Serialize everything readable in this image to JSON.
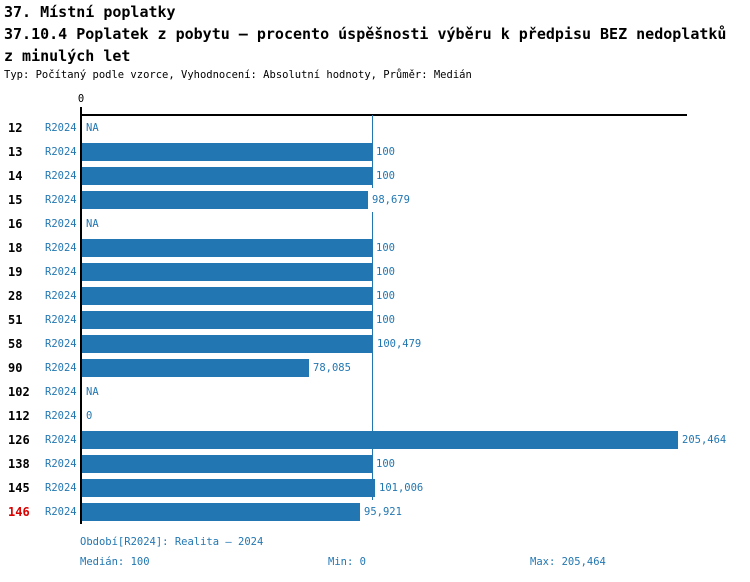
{
  "header": {
    "section_title": "37. Místní poplatky",
    "title_line1": "37.10.4 Poplatek z pobytu – procento úspěšnosti výběru k předpisu BEZ nedoplatků",
    "title_line2": "z minulých let",
    "meta": "Typ: Počítaný podle vzorce, Vyhodnocení: Absolutní hodnoty, Průměr: Medián"
  },
  "chart_data": {
    "type": "bar",
    "orientation": "horizontal",
    "title": "37.10.4 Poplatek z pobytu – procento úspěšnosti výběru k předpisu BEZ nedoplatků z minulých let",
    "axis_zero_label": "0",
    "xlim": [
      0,
      205.464
    ],
    "median_value": 100,
    "grid": false,
    "colors": {
      "bar": "#2277b2",
      "text_blue": "#2277b2",
      "axis_black": "#000000",
      "highlight_red": "#d90000"
    },
    "categories": [
      "12",
      "13",
      "14",
      "15",
      "16",
      "18",
      "19",
      "28",
      "51",
      "58",
      "90",
      "102",
      "112",
      "126",
      "138",
      "145",
      "146"
    ],
    "rows": [
      {
        "id": "12",
        "period": "R2024",
        "value": null,
        "label": "NA"
      },
      {
        "id": "13",
        "period": "R2024",
        "value": 100,
        "label": "100"
      },
      {
        "id": "14",
        "period": "R2024",
        "value": 100,
        "label": "100"
      },
      {
        "id": "15",
        "period": "R2024",
        "value": 98.679,
        "label": "98,679"
      },
      {
        "id": "16",
        "period": "R2024",
        "value": null,
        "label": "NA"
      },
      {
        "id": "18",
        "period": "R2024",
        "value": 100,
        "label": "100"
      },
      {
        "id": "19",
        "period": "R2024",
        "value": 100,
        "label": "100"
      },
      {
        "id": "28",
        "period": "R2024",
        "value": 100,
        "label": "100"
      },
      {
        "id": "51",
        "period": "R2024",
        "value": 100,
        "label": "100"
      },
      {
        "id": "58",
        "period": "R2024",
        "value": 100.479,
        "label": "100,479"
      },
      {
        "id": "90",
        "period": "R2024",
        "value": 78.085,
        "label": "78,085"
      },
      {
        "id": "102",
        "period": "R2024",
        "value": null,
        "label": "NA"
      },
      {
        "id": "112",
        "period": "R2024",
        "value": 0,
        "label": "0"
      },
      {
        "id": "126",
        "period": "R2024",
        "value": 205.464,
        "label": "205,464"
      },
      {
        "id": "138",
        "period": "R2024",
        "value": 100,
        "label": "100"
      },
      {
        "id": "145",
        "period": "R2024",
        "value": 101.006,
        "label": "101,006"
      },
      {
        "id": "146",
        "period": "R2024",
        "value": 95.921,
        "label": "95,921",
        "highlight": true
      }
    ]
  },
  "footer": {
    "period": "Období[R2024]: Realita – 2024",
    "median": "Medián: 100",
    "min": "Min: 0",
    "max": "Max: 205,464"
  }
}
